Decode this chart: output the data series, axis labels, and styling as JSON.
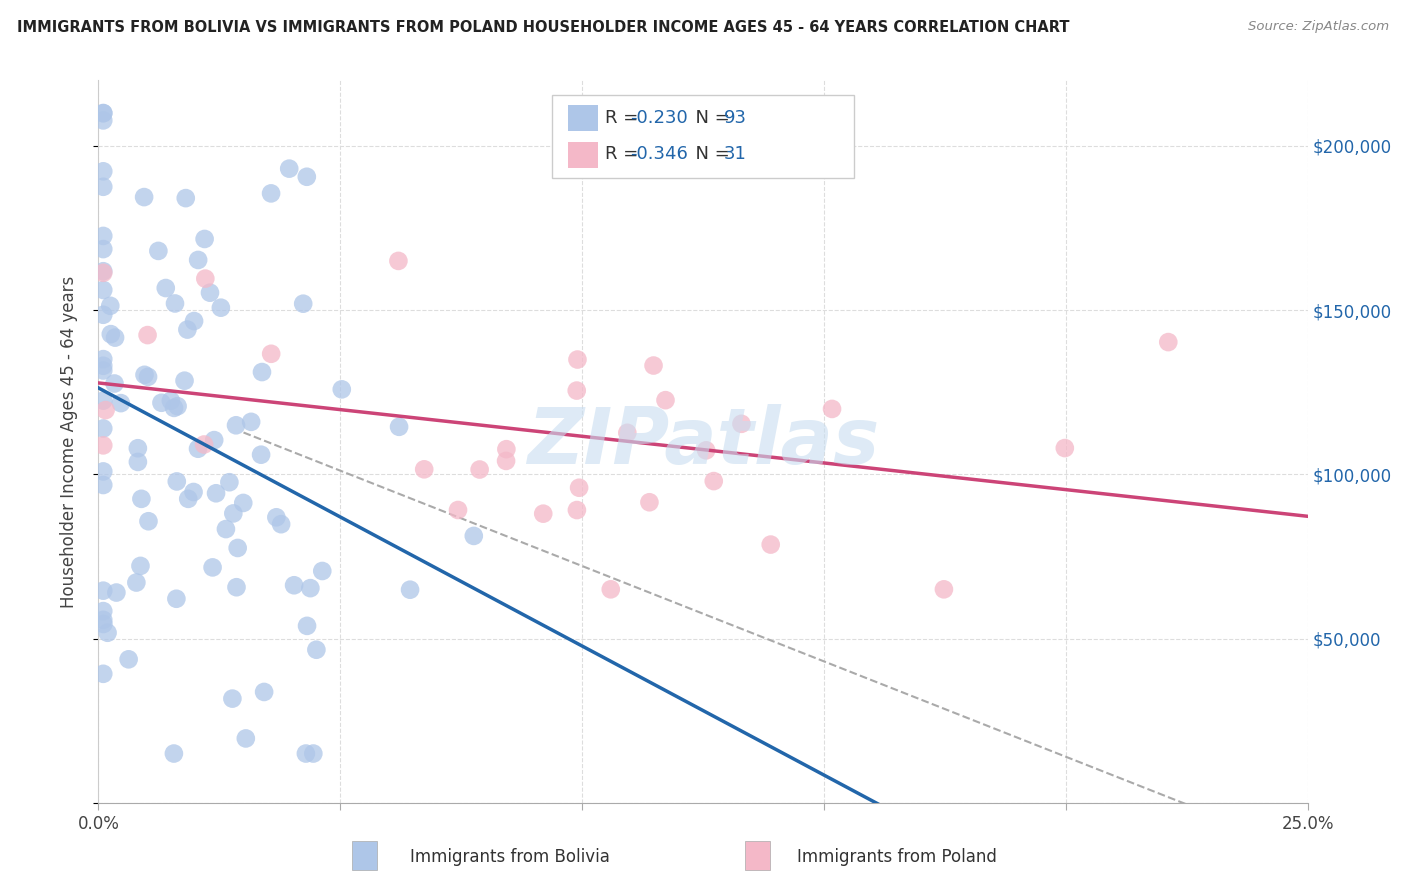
{
  "title": "IMMIGRANTS FROM BOLIVIA VS IMMIGRANTS FROM POLAND HOUSEHOLDER INCOME AGES 45 - 64 YEARS CORRELATION CHART",
  "source": "Source: ZipAtlas.com",
  "ylabel": "Householder Income Ages 45 - 64 years",
  "xlim": [
    0.0,
    0.25
  ],
  "ylim": [
    0,
    220000
  ],
  "bolivia_R": -0.23,
  "bolivia_N": 93,
  "poland_R": -0.346,
  "poland_N": 31,
  "bolivia_color": "#aec6e8",
  "poland_color": "#f4b8c8",
  "bolivia_line_color": "#2266aa",
  "poland_line_color": "#cc4477",
  "dashed_line_color": "#aaaaaa",
  "watermark": "ZIPatlas",
  "bolivia_seed": 12,
  "poland_seed": 99
}
